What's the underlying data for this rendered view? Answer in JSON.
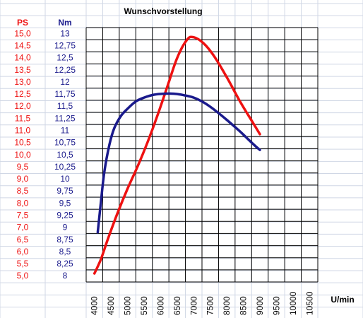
{
  "title": "Wunschvorstellung",
  "colors": {
    "ps": "#ee1111",
    "nm": "#1a1a8c",
    "grid": "#000000",
    "cell_border": "#d0d7e5"
  },
  "chart_data": {
    "type": "line",
    "title": "Wunschvorstellung",
    "xlabel": "U/min",
    "x_ticks": [
      "4000",
      "4500",
      "5000",
      "5500",
      "6000",
      "6500",
      "7000",
      "7500",
      "8000",
      "8500",
      "9000",
      "9500",
      "10000",
      "10500"
    ],
    "xlim": [
      4000,
      10500
    ],
    "left_axis": {
      "header": "PS",
      "ticks": [
        "15,0",
        "14,5",
        "14,0",
        "13,5",
        "13,0",
        "12,5",
        "12,0",
        "11,5",
        "11,0",
        "10,5",
        "10,0",
        "9,5",
        "9,0",
        "8,5",
        "8,0",
        "7,5",
        "7,0",
        "6,5",
        "6,0",
        "5,5",
        "5,0"
      ],
      "ylim": [
        5.0,
        15.0
      ]
    },
    "right_axis": {
      "header": "Nm",
      "ticks": [
        "13",
        "12,75",
        "12,5",
        "12,25",
        "12",
        "11,75",
        "11,5",
        "11,25",
        "11",
        "10,75",
        "10,5",
        "10,25",
        "10",
        "9,75",
        "9,5",
        "9,25",
        "9",
        "8,75",
        "8,5",
        "8,25",
        "8"
      ],
      "ylim": [
        8.0,
        13.0
      ]
    },
    "series": [
      {
        "name": "PS",
        "axis": "left",
        "color": "#ee1111",
        "x": [
          4000,
          4200,
          4400,
          4700,
          5000,
          5300,
          5600,
          5900,
          6200,
          6500,
          6800,
          7000,
          7300,
          7600,
          8000,
          8400,
          8800,
          9000
        ],
        "y": [
          5.1,
          5.7,
          6.5,
          7.6,
          8.6,
          9.5,
          10.5,
          11.6,
          12.8,
          14.0,
          14.75,
          14.85,
          14.6,
          14.1,
          13.2,
          12.2,
          11.3,
          10.85
        ]
      },
      {
        "name": "Nm",
        "axis": "right",
        "color": "#1a1a8c",
        "x": [
          4100,
          4200,
          4300,
          4450,
          4600,
          4800,
          5000,
          5250,
          5500,
          5800,
          6100,
          6400,
          6700,
          7000,
          7300,
          7600,
          8000,
          8400,
          8800,
          9000
        ],
        "y": [
          8.9,
          9.55,
          10.15,
          10.7,
          11.05,
          11.3,
          11.45,
          11.6,
          11.68,
          11.74,
          11.76,
          11.76,
          11.73,
          11.68,
          11.58,
          11.44,
          11.22,
          10.98,
          10.72,
          10.6
        ]
      }
    ]
  }
}
